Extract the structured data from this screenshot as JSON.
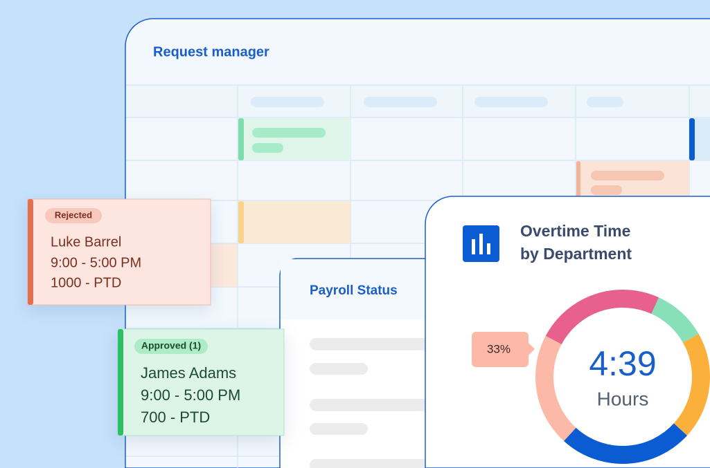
{
  "request_manager": {
    "title": "Request manager"
  },
  "cards": [
    {
      "status": "Rejected",
      "name": "Luke Barrel",
      "time": "9:00 - 5:00 PM",
      "balance": "1000 - PTD"
    },
    {
      "status": "Approved (1)",
      "name": "James Adams",
      "time": "9:00 - 5:00 PM",
      "balance": "700 - PTD"
    }
  ],
  "payroll": {
    "title": "Payroll Status"
  },
  "overtime": {
    "title_lines": [
      "Overtime Time",
      "by Department"
    ],
    "center_value": "4:39",
    "center_unit": "Hours",
    "callout": "33%",
    "chart_data": {
      "type": "donut",
      "series": [
        {
          "color": "#e8608e",
          "value": 24
        },
        {
          "color": "#88dfb8",
          "value": 10
        },
        {
          "color": "#fbb03b",
          "value": 20
        },
        {
          "color": "#0b5bd3",
          "value": 25
        },
        {
          "color": "#fdb9a8",
          "value": 21
        }
      ]
    }
  }
}
